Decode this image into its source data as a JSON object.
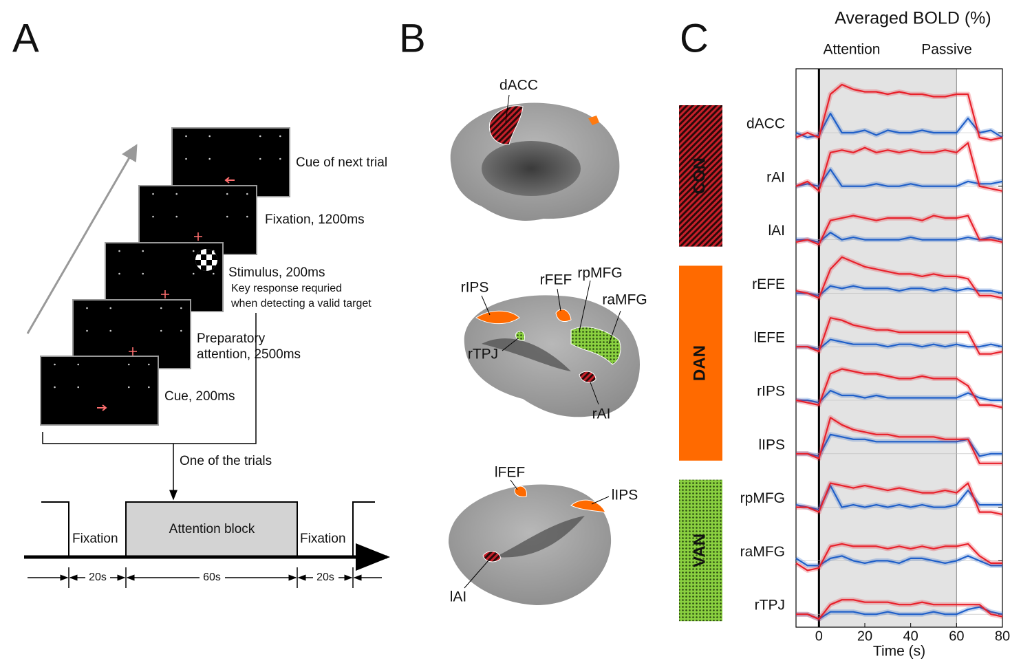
{
  "panel_a": {
    "label": "A",
    "screens": [
      "Cue of next trial",
      "Fixation, 1200ms",
      "Stimulus, 200ms",
      "Key  response requried",
      "when detecting a valid target",
      "Preparatory",
      "attention, 2500ms",
      "Cue, 200ms"
    ],
    "trial_label": "One of the trials",
    "timeline": {
      "left": "Fixation",
      "block": "Attention block",
      "right": "Fixation",
      "durations": [
        "20s",
        "60s",
        "20s"
      ]
    }
  },
  "panel_b": {
    "label": "B",
    "medial": [
      "dACC"
    ],
    "right_lateral": [
      "rIPS",
      "rFEF",
      "rpMFG",
      "raMFG",
      "rTPJ",
      "rAI"
    ],
    "left_lateral": [
      "lFEF",
      "lIPS",
      "lAI"
    ]
  },
  "chart_data": {
    "type": "line",
    "label": "C",
    "title": "Averaged BOLD (%)",
    "series_names": [
      "Attention",
      "Passive"
    ],
    "colors": [
      "#e8202a",
      "#1f5fc8"
    ],
    "xlabel": "Time (s)",
    "xlim": [
      -10,
      80
    ],
    "xticks": [
      0,
      20,
      40,
      60,
      80
    ],
    "block": [
      0,
      60
    ],
    "x": [
      -10,
      -5,
      0,
      5,
      10,
      15,
      20,
      25,
      30,
      35,
      40,
      45,
      50,
      55,
      60,
      65,
      70,
      75,
      80
    ],
    "groups": [
      {
        "name": "CON",
        "color": "#a01820",
        "regions": [
          {
            "name": "dACC",
            "attention": [
              -0.1,
              0,
              -0.1,
              0.8,
              1.0,
              0.9,
              0.85,
              0.85,
              0.8,
              0.85,
              0.8,
              0.8,
              0.75,
              0.75,
              0.8,
              0.8,
              -0.1,
              -0.15,
              -0.1
            ],
            "passive": [
              0,
              -0.1,
              -0.05,
              0.4,
              0,
              0,
              0.05,
              -0.05,
              0.05,
              0,
              0,
              0.05,
              0,
              0,
              0,
              0.3,
              0,
              0.05,
              -0.1
            ]
          },
          {
            "name": "rAI",
            "attention": [
              0,
              0.1,
              -0.1,
              0.7,
              0.75,
              0.7,
              0.8,
              0.7,
              0.75,
              0.7,
              0.75,
              0.7,
              0.7,
              0.75,
              0.7,
              0.9,
              0,
              -0.05,
              -0.1
            ],
            "passive": [
              0,
              0.05,
              0,
              0.35,
              0,
              0,
              0,
              0.05,
              0,
              0,
              0.05,
              0,
              0,
              0,
              0,
              0.1,
              0.05,
              0.05,
              0.1
            ]
          },
          {
            "name": "lAI",
            "attention": [
              -0.05,
              0,
              -0.1,
              0.4,
              0.45,
              0.5,
              0.45,
              0.4,
              0.45,
              0.45,
              0.45,
              0.4,
              0.5,
              0.45,
              0.45,
              0.5,
              0,
              0,
              -0.05
            ],
            "passive": [
              0,
              0,
              -0.05,
              0.15,
              0,
              0.05,
              0,
              0,
              0,
              0,
              0.05,
              0,
              0,
              0,
              0,
              0.05,
              0,
              0.05,
              0
            ]
          }
        ]
      },
      {
        "name": "DAN",
        "color": "#ff6a00",
        "regions": [
          {
            "name": "rEFE",
            "attention": [
              0.05,
              0,
              -0.1,
              0.5,
              0.75,
              0.65,
              0.55,
              0.5,
              0.45,
              0.4,
              0.4,
              0.35,
              0.4,
              0.35,
              0.35,
              0.3,
              -0.05,
              -0.05,
              -0.1
            ],
            "passive": [
              0,
              0,
              -0.05,
              0.15,
              0.1,
              0.15,
              0.1,
              0.1,
              0.1,
              0.05,
              0.1,
              0.1,
              0.05,
              0.1,
              0.05,
              0.1,
              0.05,
              0.05,
              0
            ]
          },
          {
            "name": "lEFE",
            "attention": [
              0,
              0,
              -0.1,
              0.6,
              0.55,
              0.45,
              0.4,
              0.35,
              0.35,
              0.3,
              0.3,
              0.3,
              0.3,
              0.3,
              0.3,
              0.3,
              -0.15,
              -0.15,
              -0.1
            ],
            "passive": [
              0,
              0,
              -0.05,
              0.15,
              0.1,
              0.05,
              0.05,
              0.05,
              0,
              0.05,
              0.05,
              0,
              0.05,
              0,
              0.05,
              0,
              0,
              0.05,
              0
            ]
          },
          {
            "name": "rIPS",
            "attention": [
              0,
              -0.05,
              -0.1,
              0.55,
              0.65,
              0.6,
              0.55,
              0.55,
              0.5,
              0.45,
              0.45,
              0.5,
              0.45,
              0.45,
              0.45,
              0.3,
              -0.1,
              -0.1,
              -0.15
            ],
            "passive": [
              0,
              0,
              -0.05,
              0.2,
              0.1,
              0.1,
              0.05,
              0.1,
              0.05,
              0.05,
              0.05,
              0.05,
              0.05,
              0.05,
              0.05,
              0.15,
              0.05,
              0,
              0
            ]
          },
          {
            "name": "lIPS",
            "attention": [
              0,
              0,
              -0.1,
              0.75,
              0.6,
              0.5,
              0.45,
              0.4,
              0.4,
              0.35,
              0.35,
              0.35,
              0.35,
              0.3,
              0.3,
              0.3,
              -0.2,
              -0.2,
              -0.2
            ],
            "passive": [
              0,
              0,
              -0.05,
              0.4,
              0.35,
              0.3,
              0.3,
              0.25,
              0.25,
              0.25,
              0.25,
              0.25,
              0.25,
              0.25,
              0.25,
              0.3,
              -0.05,
              0,
              0
            ]
          }
        ]
      },
      {
        "name": "VAN",
        "color": "#4f8a1a",
        "regions": [
          {
            "name": "rpMFG",
            "attention": [
              0,
              0,
              -0.1,
              0.5,
              0.45,
              0.4,
              0.45,
              0.4,
              0.35,
              0.4,
              0.35,
              0.3,
              0.3,
              0.35,
              0.3,
              0.5,
              -0.1,
              -0.1,
              -0.15
            ],
            "passive": [
              0.05,
              0,
              -0.05,
              0.45,
              0,
              0.05,
              0,
              0.05,
              0,
              0.05,
              0,
              0.05,
              0,
              0,
              0.05,
              0.35,
              0.05,
              0.05,
              0.05
            ]
          },
          {
            "name": "raMFG",
            "attention": [
              -0.05,
              -0.2,
              -0.15,
              0.3,
              0.35,
              0.3,
              0.3,
              0.3,
              0.25,
              0.3,
              0.25,
              0.3,
              0.25,
              0.3,
              0.3,
              0.35,
              0.1,
              -0.05,
              -0.05
            ],
            "passive": [
              0.05,
              -0.1,
              -0.1,
              0.05,
              0.1,
              0,
              -0.05,
              0,
              0,
              -0.05,
              0.05,
              0.05,
              0,
              -0.05,
              0,
              0.1,
              0,
              -0.1,
              -0.1
            ]
          },
          {
            "name": "rTPJ",
            "attention": [
              0,
              0,
              -0.1,
              0.2,
              0.3,
              0.3,
              0.25,
              0.25,
              0.25,
              0.2,
              0.2,
              0.25,
              0.2,
              0.2,
              0.2,
              0.2,
              0.2,
              0,
              -0.05
            ],
            "passive": [
              0,
              0,
              -0.1,
              0.05,
              0.05,
              0.05,
              0,
              0,
              0.05,
              0,
              0,
              0,
              0.05,
              0,
              0,
              0.1,
              0.15,
              0.05,
              0
            ]
          }
        ]
      }
    ]
  }
}
